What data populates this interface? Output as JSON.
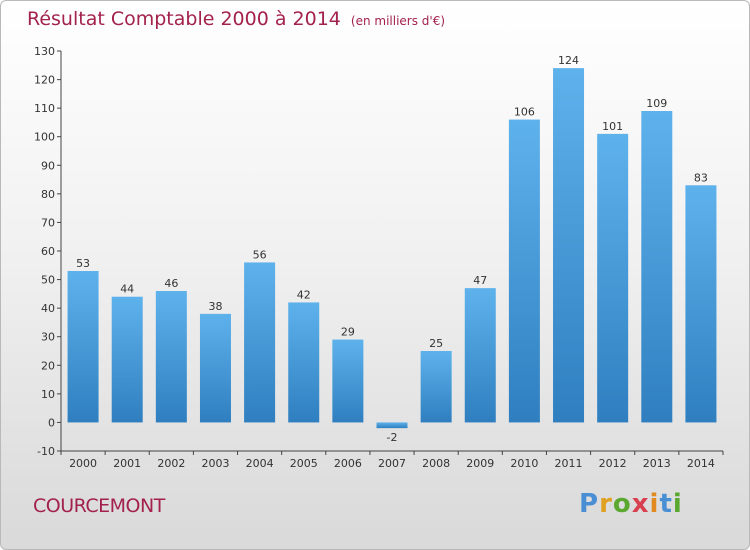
{
  "header": {
    "title": "Résultat Comptable 2000 à 2014",
    "unit": "(en milliers d'€)"
  },
  "footer": {
    "place": "COURCEMONT",
    "logo_text": "Proxiti"
  },
  "colors": {
    "bar_top": "#5eb2ec",
    "bar_bottom": "#2f7fc0",
    "title": "#a3224c"
  },
  "chart_data": {
    "type": "bar",
    "categories": [
      "2000",
      "2001",
      "2002",
      "2003",
      "2004",
      "2005",
      "2006",
      "2007",
      "2008",
      "2009",
      "2010",
      "2011",
      "2012",
      "2013",
      "2014"
    ],
    "values": [
      53,
      44,
      46,
      38,
      56,
      42,
      29,
      -2,
      25,
      47,
      106,
      124,
      101,
      109,
      83
    ],
    "ylim": [
      -10,
      130
    ],
    "yticks": [
      -10,
      0,
      10,
      20,
      30,
      40,
      50,
      60,
      70,
      80,
      90,
      100,
      110,
      120,
      130
    ],
    "grid": false,
    "legend": "none"
  }
}
